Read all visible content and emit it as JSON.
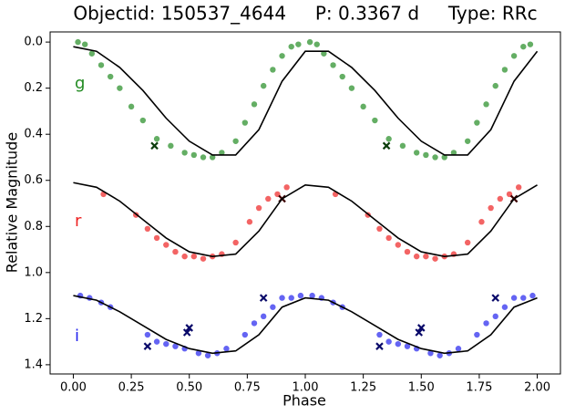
{
  "chart_data": {
    "type": "scatter",
    "title": "Objectid: 150537_4644     P: 0.3367 d     Type: RRc",
    "x_label": "Phase",
    "y_label": "Relative Magnitude",
    "xlim": [
      -0.1,
      2.1
    ],
    "ylim": [
      -0.044,
      1.44
    ],
    "y_inverted": true,
    "xticks": [
      {
        "value": 0,
        "label": "0.00"
      },
      0.25,
      {
        "value": 0.5,
        "label": "0.50"
      },
      0.75,
      {
        "value": 1,
        "label": "1.00"
      },
      1.25,
      {
        "value": 1.5,
        "label": "1.50"
      },
      1.75,
      {
        "value": 2,
        "label": "2.00"
      }
    ],
    "yticks": [
      {
        "value": 0,
        "label": "0.0"
      },
      0.2,
      0.4,
      0.6,
      0.8,
      {
        "value": 1,
        "label": "1.0"
      },
      1.2,
      1.4
    ],
    "series": [
      {
        "name": "g",
        "color": "#228b22",
        "kind": "points",
        "x": [
          0.02,
          0.05,
          0.08,
          0.12,
          0.16,
          0.2,
          0.25,
          0.3,
          0.36,
          0.42,
          0.48,
          0.52,
          0.56,
          0.6,
          0.64,
          0.7,
          0.74,
          0.78,
          0.82,
          0.86,
          0.9,
          0.94,
          0.97,
          1.02,
          1.05,
          1.08,
          1.12,
          1.16,
          1.2,
          1.25,
          1.3,
          1.36,
          1.42,
          1.48,
          1.52,
          1.56,
          1.6,
          1.64,
          1.7,
          1.74,
          1.78,
          1.82,
          1.86,
          1.9,
          1.94,
          1.97
        ],
        "values": [
          0.0,
          0.01,
          0.05,
          0.1,
          0.15,
          0.2,
          0.28,
          0.34,
          0.42,
          0.45,
          0.48,
          0.49,
          0.5,
          0.5,
          0.48,
          0.43,
          0.35,
          0.27,
          0.19,
          0.12,
          0.06,
          0.02,
          0.01,
          0.0,
          0.01,
          0.05,
          0.1,
          0.15,
          0.2,
          0.28,
          0.34,
          0.42,
          0.45,
          0.48,
          0.49,
          0.5,
          0.5,
          0.48,
          0.43,
          0.35,
          0.27,
          0.19,
          0.12,
          0.06,
          0.02,
          0.01
        ]
      },
      {
        "name": "r",
        "color": "#ee2222",
        "kind": "points",
        "x": [
          0.13,
          0.27,
          0.32,
          0.36,
          0.4,
          0.44,
          0.48,
          0.52,
          0.56,
          0.6,
          0.64,
          0.7,
          0.76,
          0.8,
          0.84,
          0.88,
          0.92,
          1.13,
          1.27,
          1.32,
          1.36,
          1.4,
          1.44,
          1.48,
          1.52,
          1.56,
          1.6,
          1.64,
          1.7,
          1.76,
          1.8,
          1.84,
          1.88,
          1.92
        ],
        "values": [
          0.66,
          0.75,
          0.81,
          0.85,
          0.88,
          0.91,
          0.93,
          0.93,
          0.94,
          0.93,
          0.92,
          0.87,
          0.78,
          0.72,
          0.68,
          0.66,
          0.63,
          0.66,
          0.75,
          0.81,
          0.85,
          0.88,
          0.91,
          0.93,
          0.93,
          0.94,
          0.93,
          0.92,
          0.87,
          0.78,
          0.72,
          0.68,
          0.66,
          0.63
        ]
      },
      {
        "name": "i",
        "color": "#2222ee",
        "kind": "points",
        "x": [
          0.03,
          0.07,
          0.12,
          0.16,
          0.32,
          0.36,
          0.4,
          0.44,
          0.48,
          0.54,
          0.58,
          0.62,
          0.66,
          0.74,
          0.78,
          0.82,
          0.86,
          0.9,
          0.94,
          0.98,
          1.03,
          1.07,
          1.12,
          1.16,
          1.32,
          1.36,
          1.4,
          1.44,
          1.48,
          1.54,
          1.58,
          1.62,
          1.66,
          1.74,
          1.78,
          1.82,
          1.86,
          1.9,
          1.94,
          1.98
        ],
        "values": [
          1.1,
          1.11,
          1.13,
          1.15,
          1.27,
          1.3,
          1.31,
          1.32,
          1.33,
          1.35,
          1.36,
          1.35,
          1.33,
          1.27,
          1.22,
          1.19,
          1.15,
          1.11,
          1.11,
          1.1,
          1.1,
          1.11,
          1.13,
          1.15,
          1.27,
          1.3,
          1.31,
          1.32,
          1.33,
          1.35,
          1.36,
          1.35,
          1.33,
          1.27,
          1.22,
          1.19,
          1.15,
          1.11,
          1.11,
          1.1
        ]
      },
      {
        "color": "#0b3d0b",
        "kind": "crosses",
        "x": [
          0.35,
          1.35
        ],
        "values": [
          0.45,
          0.45
        ]
      },
      {
        "color": "#3a0000",
        "kind": "crosses",
        "x": [
          0.9,
          1.9
        ],
        "values": [
          0.68,
          0.68
        ]
      },
      {
        "color": "#0a0a6a",
        "kind": "crosses",
        "x": [
          0.32,
          0.49,
          0.5,
          0.82,
          1.32,
          1.49,
          1.5,
          1.82
        ],
        "values": [
          1.32,
          1.26,
          1.24,
          1.11,
          1.32,
          1.26,
          1.24,
          1.11
        ]
      },
      {
        "color": "#000000",
        "kind": "line",
        "x": [
          0,
          0.1,
          0.2,
          0.3,
          0.4,
          0.5,
          0.6,
          0.7,
          0.8,
          0.9,
          1,
          1.1,
          1.2,
          1.3,
          1.4,
          1.5,
          1.6,
          1.7,
          1.8,
          1.9,
          2
        ],
        "values": [
          0.02,
          0.04,
          0.11,
          0.21,
          0.33,
          0.43,
          0.49,
          0.49,
          0.38,
          0.17,
          0.04,
          0.04,
          0.11,
          0.21,
          0.33,
          0.43,
          0.49,
          0.49,
          0.38,
          0.17,
          0.04
        ]
      },
      {
        "color": "#000000",
        "kind": "line",
        "x": [
          0,
          0.1,
          0.2,
          0.3,
          0.4,
          0.5,
          0.6,
          0.7,
          0.8,
          0.9,
          1,
          1.1,
          1.2,
          1.3,
          1.4,
          1.5,
          1.6,
          1.7,
          1.8,
          1.9,
          2
        ],
        "values": [
          0.61,
          0.63,
          0.69,
          0.77,
          0.85,
          0.91,
          0.93,
          0.92,
          0.82,
          0.68,
          0.62,
          0.63,
          0.69,
          0.77,
          0.85,
          0.91,
          0.93,
          0.92,
          0.82,
          0.68,
          0.62
        ]
      },
      {
        "color": "#000000",
        "kind": "line",
        "x": [
          0,
          0.1,
          0.2,
          0.3,
          0.4,
          0.5,
          0.6,
          0.7,
          0.8,
          0.9,
          1,
          1.1,
          1.2,
          1.3,
          1.4,
          1.5,
          1.6,
          1.7,
          1.8,
          1.9,
          2
        ],
        "values": [
          1.1,
          1.12,
          1.17,
          1.23,
          1.29,
          1.33,
          1.35,
          1.34,
          1.27,
          1.15,
          1.11,
          1.12,
          1.17,
          1.23,
          1.29,
          1.33,
          1.35,
          1.34,
          1.27,
          1.15,
          1.11
        ]
      }
    ]
  }
}
